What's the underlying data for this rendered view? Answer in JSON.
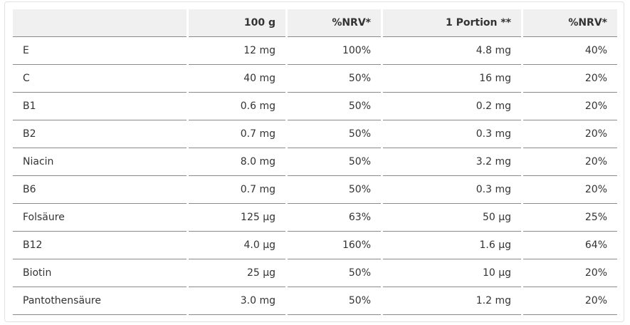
{
  "table": {
    "header": [
      "",
      "100 g",
      "%NRV*",
      "1 Portion **",
      "%NRV*"
    ],
    "rows": [
      [
        "E",
        "12 mg",
        "100%",
        "4.8 mg",
        "40%"
      ],
      [
        "C",
        "40 mg",
        "50%",
        "16 mg",
        "20%"
      ],
      [
        "B1",
        "0.6 mg",
        "50%",
        "0.2 mg",
        "20%"
      ],
      [
        "B2",
        "0.7 mg",
        "50%",
        "0.3 mg",
        "20%"
      ],
      [
        "Niacin",
        "8.0 mg",
        "50%",
        "3.2 mg",
        "20%"
      ],
      [
        "B6",
        "0.7 mg",
        "50%",
        "0.3 mg",
        "20%"
      ],
      [
        "Folsäure",
        "125 µg",
        "63%",
        "50 µg",
        "25%"
      ],
      [
        "B12",
        "4.0 µg",
        "160%",
        "1.6 µg",
        "64%"
      ],
      [
        "Biotin",
        "25 µg",
        "50%",
        "10 µg",
        "20%"
      ],
      [
        "Pantothensäure",
        "3.0 mg",
        "50%",
        "1.2 mg",
        "20%"
      ]
    ]
  }
}
